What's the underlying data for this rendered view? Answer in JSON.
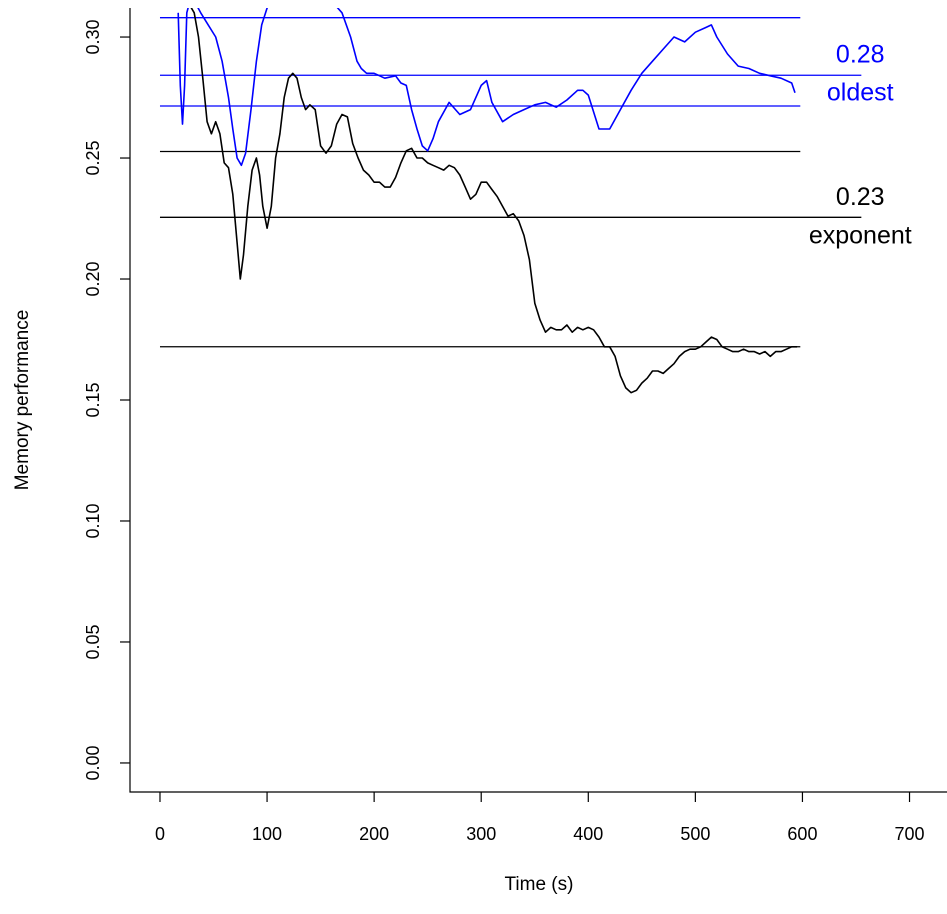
{
  "chart_data": {
    "type": "line",
    "title": "",
    "xlabel": "Time (s)",
    "ylabel": "Memory performance",
    "xlim": [
      -28,
      735
    ],
    "ylim": [
      -0.012,
      0.312
    ],
    "x_ticks": [
      0,
      100,
      200,
      300,
      400,
      500,
      600,
      700
    ],
    "x_tick_labels": [
      "0",
      "100",
      "200",
      "300",
      "400",
      "500",
      "600",
      "700"
    ],
    "y_ticks": [
      0.0,
      0.05,
      0.1,
      0.15,
      0.2,
      0.25,
      0.3
    ],
    "y_tick_labels": [
      "0.00",
      "0.05",
      "0.10",
      "0.15",
      "0.20",
      "0.25",
      "0.30"
    ],
    "grid": false,
    "legend": "none",
    "colors": {
      "black": "#000000",
      "blue": "#0000ff"
    },
    "series": [
      {
        "color": "#0000ff",
        "x": [
          17,
          19,
          21,
          23,
          25,
          28,
          32,
          38,
          45,
          52,
          58,
          64,
          68,
          72,
          76,
          80,
          85,
          90,
          95,
          100,
          105,
          110,
          160,
          170,
          178,
          184,
          188,
          193,
          200,
          210,
          220,
          225,
          230,
          235,
          240,
          245,
          250,
          255,
          260,
          270,
          280,
          290,
          300,
          305,
          310,
          320,
          330,
          340,
          350,
          360,
          370,
          380,
          390,
          395,
          400,
          410,
          420,
          430,
          440,
          450,
          460,
          470,
          480,
          490,
          500,
          510,
          515,
          520,
          530,
          540,
          550,
          560,
          570,
          580,
          590,
          593
        ],
        "y": [
          0.31,
          0.28,
          0.264,
          0.28,
          0.31,
          0.315,
          0.315,
          0.31,
          0.305,
          0.3,
          0.29,
          0.275,
          0.262,
          0.25,
          0.247,
          0.252,
          0.27,
          0.29,
          0.305,
          0.312,
          0.315,
          0.315,
          0.315,
          0.31,
          0.3,
          0.29,
          0.287,
          0.285,
          0.285,
          0.283,
          0.284,
          0.281,
          0.28,
          0.27,
          0.262,
          0.255,
          0.253,
          0.258,
          0.265,
          0.273,
          0.268,
          0.27,
          0.28,
          0.282,
          0.273,
          0.265,
          0.268,
          0.27,
          0.272,
          0.273,
          0.271,
          0.274,
          0.278,
          0.278,
          0.276,
          0.262,
          0.262,
          0.27,
          0.278,
          0.285,
          0.29,
          0.295,
          0.3,
          0.298,
          0.302,
          0.304,
          0.305,
          0.3,
          0.293,
          0.288,
          0.287,
          0.285,
          0.284,
          0.283,
          0.281,
          0.277
        ]
      },
      {
        "color": "#000000",
        "x": [
          22,
          25,
          28,
          32,
          36,
          40,
          44,
          48,
          52,
          56,
          60,
          64,
          68,
          72,
          75,
          78,
          82,
          86,
          90,
          93,
          96,
          100,
          104,
          108,
          112,
          116,
          120,
          124,
          128,
          132,
          136,
          140,
          145,
          150,
          155,
          160,
          165,
          170,
          175,
          180,
          185,
          190,
          195,
          200,
          205,
          210,
          215,
          220,
          225,
          230,
          235,
          240,
          245,
          250,
          255,
          260,
          265,
          270,
          275,
          280,
          285,
          290,
          295,
          300,
          305,
          310,
          315,
          320,
          325,
          330,
          335,
          340,
          345,
          350,
          355,
          360,
          365,
          370,
          375,
          380,
          385,
          390,
          395,
          400,
          405,
          410,
          415,
          420,
          425,
          430,
          435,
          440,
          445,
          450,
          455,
          460,
          465,
          470,
          475,
          480,
          485,
          490,
          495,
          500,
          505,
          510,
          515,
          520,
          525,
          530,
          535,
          540,
          545,
          550,
          555,
          560,
          565,
          570,
          575,
          580,
          585,
          590,
          595
        ],
        "y": [
          0.315,
          0.315,
          0.313,
          0.31,
          0.3,
          0.283,
          0.265,
          0.26,
          0.265,
          0.26,
          0.248,
          0.246,
          0.235,
          0.215,
          0.2,
          0.21,
          0.23,
          0.245,
          0.25,
          0.243,
          0.23,
          0.221,
          0.23,
          0.25,
          0.26,
          0.275,
          0.283,
          0.285,
          0.283,
          0.275,
          0.27,
          0.272,
          0.27,
          0.255,
          0.252,
          0.255,
          0.264,
          0.268,
          0.267,
          0.256,
          0.25,
          0.245,
          0.243,
          0.24,
          0.24,
          0.238,
          0.238,
          0.242,
          0.248,
          0.253,
          0.254,
          0.25,
          0.25,
          0.248,
          0.247,
          0.246,
          0.245,
          0.247,
          0.246,
          0.243,
          0.238,
          0.233,
          0.235,
          0.24,
          0.24,
          0.237,
          0.234,
          0.23,
          0.226,
          0.227,
          0.224,
          0.218,
          0.208,
          0.19,
          0.183,
          0.178,
          0.18,
          0.179,
          0.179,
          0.181,
          0.178,
          0.18,
          0.179,
          0.18,
          0.179,
          0.176,
          0.172,
          0.172,
          0.168,
          0.16,
          0.155,
          0.153,
          0.154,
          0.157,
          0.159,
          0.162,
          0.162,
          0.161,
          0.163,
          0.165,
          0.168,
          0.17,
          0.171,
          0.171,
          0.172,
          0.174,
          0.176,
          0.175,
          0.172,
          0.171,
          0.17,
          0.17,
          0.171,
          0.17,
          0.17,
          0.169,
          0.17,
          0.168,
          0.17,
          0.17,
          0.171,
          0.172,
          0.172
        ]
      }
    ],
    "hlines": [
      {
        "y": 0.308,
        "x0": 0,
        "x1": 598,
        "color": "#0000ff"
      },
      {
        "y": 0.2842,
        "x0": 0,
        "x1": 655,
        "color": "#0000ff"
      },
      {
        "y": 0.2715,
        "x0": 0,
        "x1": 598,
        "color": "#0000ff"
      },
      {
        "y": 0.2527,
        "x0": 0,
        "x1": 598,
        "color": "#000000"
      },
      {
        "y": 0.2255,
        "x0": 0,
        "x1": 655,
        "color": "#000000"
      },
      {
        "y": 0.172,
        "x0": 0,
        "x1": 598,
        "color": "#000000"
      }
    ],
    "annotations": [
      {
        "text": "0.28",
        "x": 654,
        "y": 0.2895,
        "color": "#0000ff"
      },
      {
        "text": "oldest",
        "x": 654,
        "y": 0.2737,
        "color": "#0000ff"
      },
      {
        "text": "0.23",
        "x": 654,
        "y": 0.2305,
        "color": "#000000"
      },
      {
        "text": "exponent",
        "x": 654,
        "y": 0.2147,
        "color": "#000000"
      }
    ]
  }
}
